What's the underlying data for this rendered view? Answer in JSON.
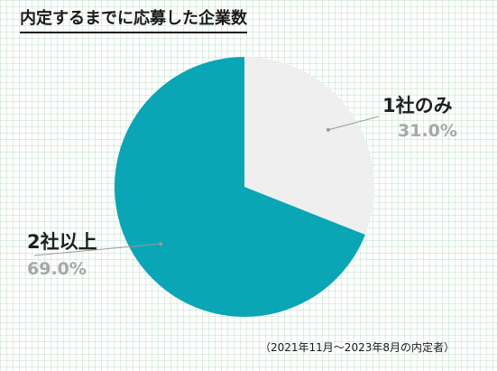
{
  "chart_data": {
    "type": "pie",
    "title": "内定するまでに応募した企業数",
    "slices": [
      {
        "label": "1社のみ",
        "value": 31.0,
        "value_label": "31.0%",
        "color": "#efefef"
      },
      {
        "label": "2社以上",
        "value": 69.0,
        "value_label": "69.0%",
        "color": "#0aa6b5"
      }
    ],
    "start": "12 o'clock",
    "direction": "clockwise",
    "footnote": "（2021年11月～2023年8月の内定者）"
  }
}
